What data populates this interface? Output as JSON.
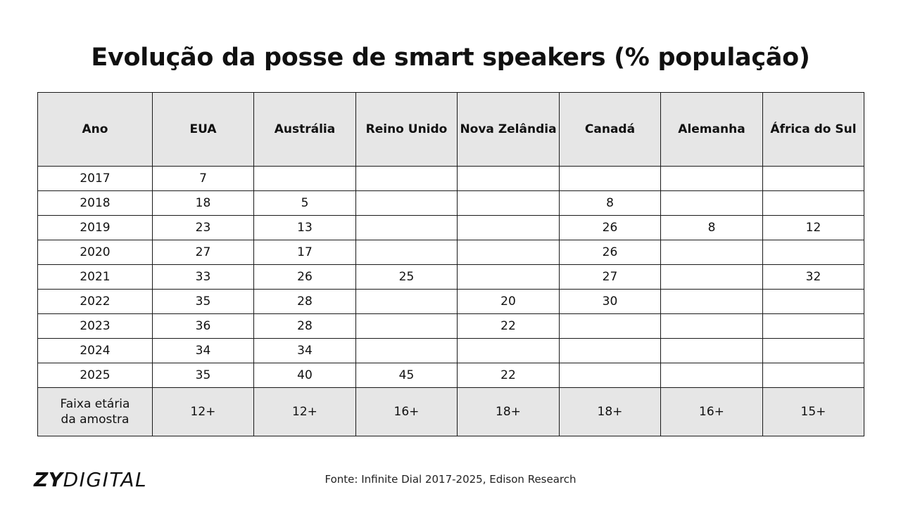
{
  "chart_data": {
    "type": "table",
    "title": "Evolução da posse de smart speakers (% população)",
    "columns": [
      "Ano",
      "EUA",
      "Austrália",
      "Reino Unido",
      "Nova Zelândia",
      "Canadá",
      "Alemanha",
      "África do Sul"
    ],
    "rows": [
      [
        "2017",
        "7",
        "",
        "",
        "",
        "",
        "",
        ""
      ],
      [
        "2018",
        "18",
        "5",
        "",
        "",
        "8",
        "",
        ""
      ],
      [
        "2019",
        "23",
        "13",
        "",
        "",
        "26",
        "8",
        "12"
      ],
      [
        "2020",
        "27",
        "17",
        "",
        "",
        "26",
        "",
        ""
      ],
      [
        "2021",
        "33",
        "26",
        "25",
        "",
        "27",
        "",
        "32"
      ],
      [
        "2022",
        "35",
        "28",
        "",
        "20",
        "30",
        "",
        ""
      ],
      [
        "2023",
        "36",
        "28",
        "",
        "22",
        "",
        "",
        ""
      ],
      [
        "2024",
        "34",
        "34",
        "",
        "",
        "",
        "",
        ""
      ],
      [
        "2025",
        "35",
        "40",
        "45",
        "22",
        "",
        "",
        ""
      ]
    ],
    "footer_row": {
      "label_line1": "Faixa etária",
      "label_line2": "da amostra",
      "values": [
        "12+",
        "12+",
        "16+",
        "18+",
        "18+",
        "16+",
        "15+"
      ]
    },
    "header_fill": "#e6e6e6",
    "border_color": "#1a1a1a"
  },
  "logo": {
    "bold_part": "ZY",
    "light_part": "DIGITAL"
  },
  "source": "Fonte: Infinite Dial 2017-2025, Edison Research"
}
